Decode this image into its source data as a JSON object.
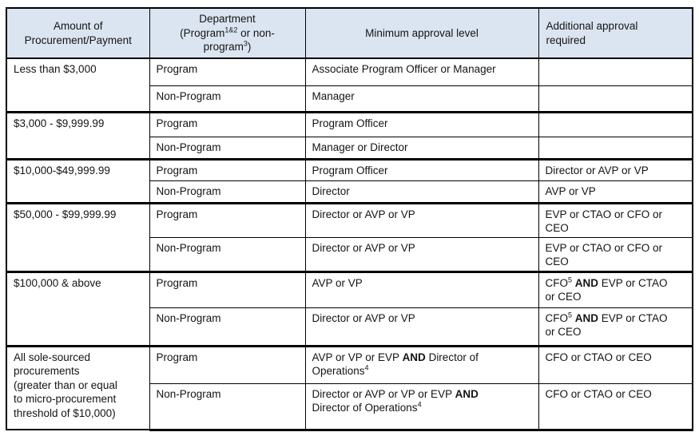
{
  "table": {
    "title": "procurement-approval-matrix",
    "headers": [
      "Amount of\nProcurement/Payment",
      "Department\n(Program^{1&2} or non-\nprogram^{3})",
      "Minimum approval level",
      "Additional approval\nrequired"
    ],
    "groups": [
      {
        "amount": "Less than $3,000",
        "rows": [
          {
            "department": "Program",
            "min_approval": "Associate Program Officer or Manager",
            "additional": ""
          },
          {
            "department": "Non-Program",
            "min_approval": "Manager",
            "additional": ""
          }
        ]
      },
      {
        "amount": "$3,000 - $9,999.99",
        "rows": [
          {
            "department": "Program",
            "min_approval": "Program Officer",
            "additional": ""
          },
          {
            "department": "Non-Program",
            "min_approval": "Manager or Director",
            "additional": ""
          }
        ]
      },
      {
        "amount": "$10,000-$49,999.99",
        "rows": [
          {
            "department": "Program",
            "min_approval": "Program Officer",
            "additional": "Director or AVP or VP"
          },
          {
            "department": "Non-Program",
            "min_approval": "Director",
            "additional": "AVP or VP"
          }
        ]
      },
      {
        "amount": "$50,000 - $99,999.99",
        "rows": [
          {
            "department": "Program",
            "min_approval": "Director or AVP or VP",
            "additional": "EVP or CTAO or CFO or CEO"
          },
          {
            "department": "Non-Program",
            "min_approval": "Director or AVP or VP",
            "additional": "EVP or CTAO or CFO or CEO"
          }
        ]
      },
      {
        "amount": "$100,000 & above",
        "rows": [
          {
            "department": "Program",
            "min_approval": "AVP or VP",
            "additional": "CFO^{5} **AND** EVP or CTAO\nor CEO"
          },
          {
            "department": "Non-Program",
            "min_approval": "Director or AVP or VP",
            "additional": "CFO^{5} **AND** EVP or CTAO\nor CEO"
          }
        ]
      },
      {
        "amount": "All sole-sourced\nprocurements\n(greater than or equal\nto micro-procurement\nthreshold of $10,000)",
        "rows": [
          {
            "department": "Program",
            "min_approval": "AVP or VP or EVP **AND** Director of\nOperations^{4}",
            "additional": "CFO or CTAO or CEO"
          },
          {
            "department": "Non-Program",
            "min_approval": "Director or AVP or VP or EVP **AND**\nDirector of Operations^{4}",
            "additional": "CFO or CTAO or CEO"
          }
        ]
      }
    ]
  },
  "styles": {
    "header_bg": "#dbe5f1",
    "border_color": "#000000",
    "text_color": "#141414"
  }
}
